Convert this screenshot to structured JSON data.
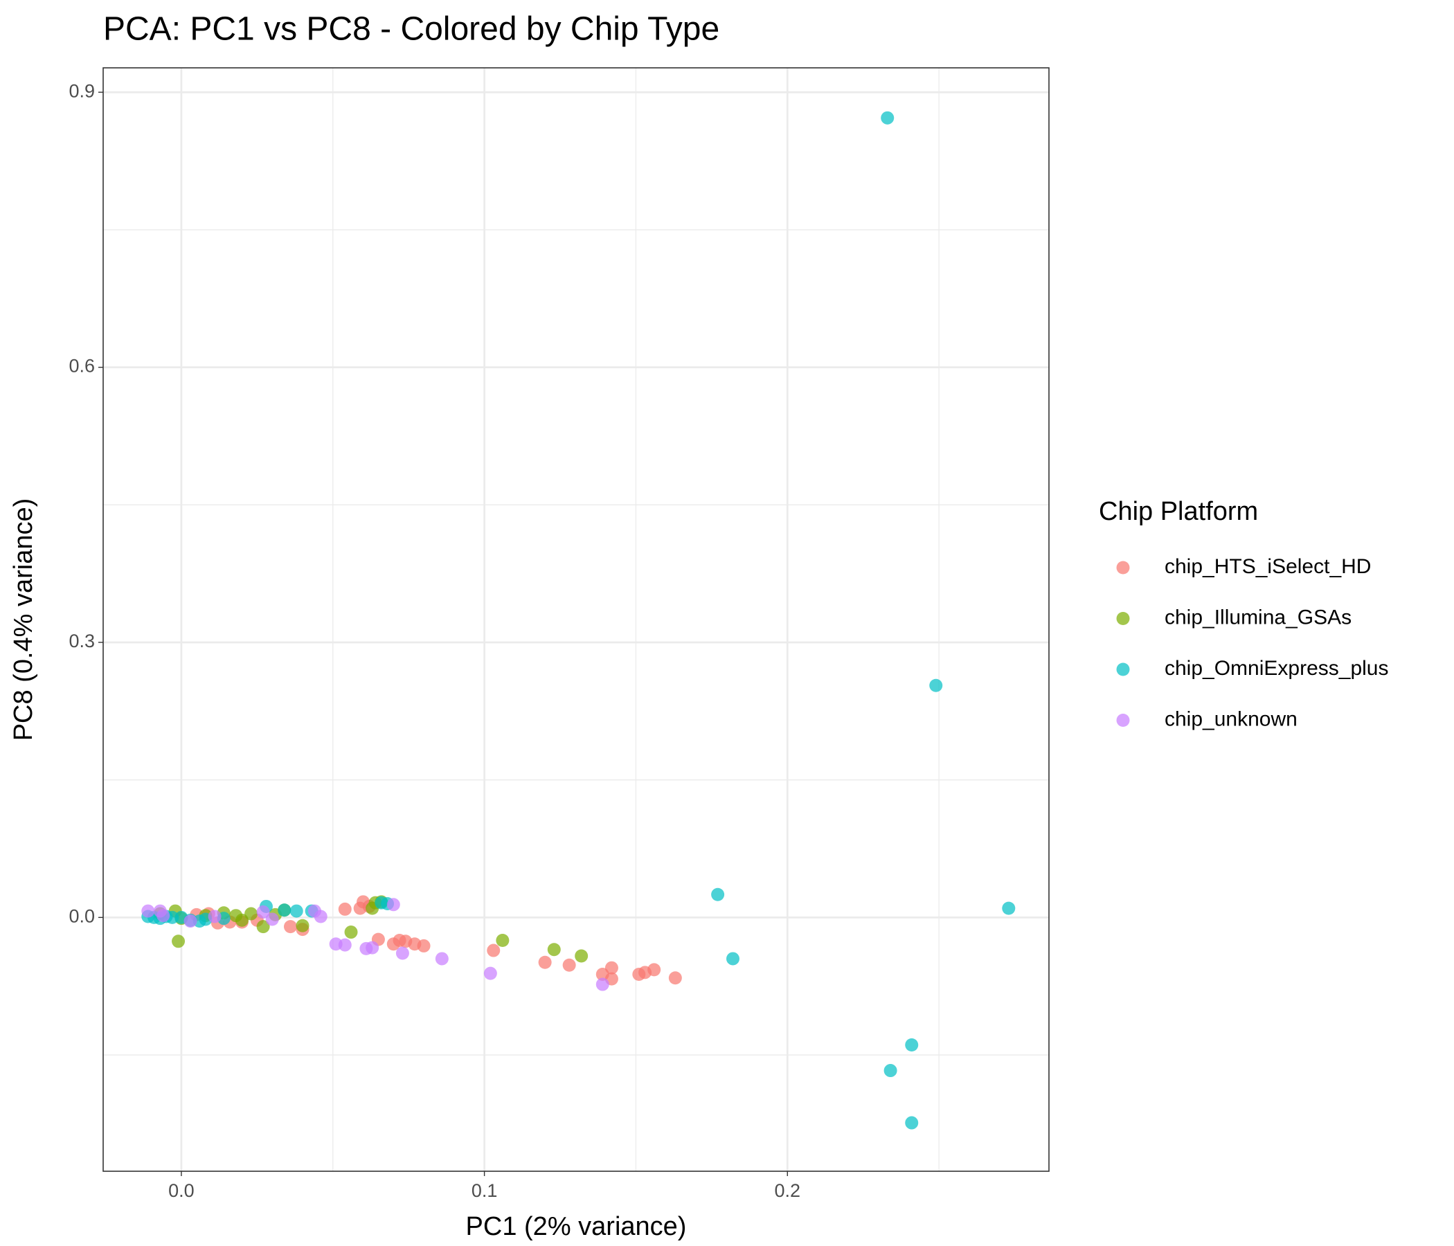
{
  "chart_data": {
    "type": "scatter",
    "title": "PCA: PC1 vs PC8 - Colored by Chip Type",
    "x_label": "PC1 (2% variance)",
    "y_label": "PC8 (0.4% variance)",
    "legend_title": "Chip Platform",
    "legend_position": "right",
    "grid": true,
    "xlim": [
      -0.0258,
      0.2863
    ],
    "ylim": [
      -0.2768,
      0.9266
    ],
    "xticks": [
      {
        "value": 0,
        "label": "0.0"
      },
      0.1,
      0.2
    ],
    "yticks": [
      {
        "value": 0,
        "label": "0.0"
      },
      0.3,
      0.6,
      0.9
    ],
    "series": [
      {
        "name": "chip_HTS_iSelect_HD",
        "color": "#F8766D",
        "x": [
          0.054,
          0.059,
          0.06,
          0.062,
          0.065,
          0.07,
          0.072,
          0.074,
          0.077,
          0.08,
          0.103,
          0.12,
          0.128,
          0.139,
          0.142,
          0.142,
          0.151,
          0.153,
          0.156,
          0.163,
          0.005,
          0.009,
          0.012,
          0.016,
          0.02,
          0.025,
          0.036,
          0.04
        ],
        "values": [
          0.009,
          0.01,
          0.017,
          0.012,
          -0.024,
          -0.029,
          -0.025,
          -0.026,
          -0.029,
          -0.031,
          -0.036,
          -0.049,
          -0.052,
          -0.062,
          -0.055,
          -0.067,
          -0.062,
          -0.06,
          -0.057,
          -0.066,
          0.003,
          0.004,
          -0.006,
          -0.005,
          -0.005,
          -0.003,
          -0.01,
          -0.013
        ]
      },
      {
        "name": "chip_Illumina_GSAs",
        "color": "#7CAE00",
        "x": [
          -0.001,
          0.056,
          0.106,
          0.123,
          0.132,
          0.063,
          0.064,
          0.066,
          -0.007,
          -0.002,
          0.0,
          0.008,
          0.014,
          0.018,
          0.02,
          0.023,
          0.027,
          0.031,
          0.034,
          0.04
        ],
        "values": [
          -0.026,
          -0.016,
          -0.025,
          -0.035,
          -0.042,
          0.01,
          0.016,
          0.017,
          0.004,
          0.007,
          -0.001,
          0.002,
          0.005,
          0.002,
          -0.003,
          0.004,
          -0.01,
          0.003,
          0.008,
          -0.009
        ]
      },
      {
        "name": "chip_OmniExpress_plus",
        "color": "#00BFC4",
        "x": [
          0.233,
          0.249,
          0.273,
          0.177,
          0.182,
          0.241,
          0.234,
          0.241,
          -0.011,
          -0.009,
          -0.007,
          -0.005,
          -0.003,
          0.0,
          0.003,
          0.006,
          0.008,
          0.014,
          0.028,
          0.034,
          0.038,
          0.043,
          0.066,
          0.068
        ],
        "values": [
          0.872,
          0.253,
          0.01,
          0.025,
          -0.045,
          -0.139,
          -0.167,
          -0.224,
          0.001,
          0.0,
          -0.001,
          0.001,
          0.0,
          0.0,
          -0.003,
          -0.004,
          -0.002,
          -0.001,
          0.012,
          0.008,
          0.007,
          0.007,
          0.016,
          0.015
        ]
      },
      {
        "name": "chip_unknown",
        "color": "#C77CFF",
        "x": [
          -0.011,
          -0.007,
          -0.006,
          0.003,
          0.011,
          0.027,
          0.03,
          0.044,
          0.046,
          0.051,
          0.054,
          0.061,
          0.063,
          0.073,
          0.086,
          0.102,
          0.139,
          0.07
        ],
        "values": [
          0.007,
          0.007,
          0.002,
          -0.004,
          0.001,
          0.006,
          -0.002,
          0.007,
          0.001,
          -0.029,
          -0.03,
          -0.034,
          -0.033,
          -0.039,
          -0.045,
          -0.061,
          -0.073,
          0.014
        ]
      }
    ]
  }
}
